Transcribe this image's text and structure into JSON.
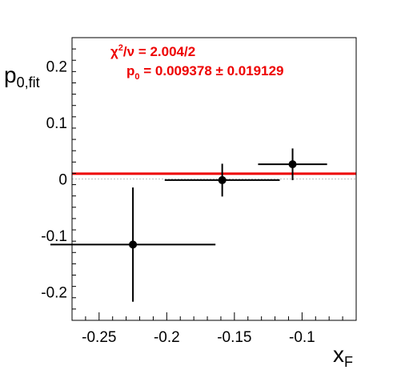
{
  "chart_data": {
    "type": "scatter",
    "xlabel": "x",
    "xlabel_sub": "F",
    "ylabel": "p",
    "ylabel_sub": "0,fit",
    "xlim": [
      -0.27,
      -0.06
    ],
    "ylim": [
      -0.25,
      0.25
    ],
    "x_ticks": [
      -0.25,
      -0.2,
      -0.15,
      -0.1
    ],
    "x_tick_labels": [
      "-0.25",
      "-0.2",
      "-0.15",
      "-0.1"
    ],
    "y_ticks": [
      -0.2,
      -0.1,
      0,
      0.1,
      0.2
    ],
    "y_tick_labels": [
      "-0.2",
      "-0.1",
      "0",
      "0.1",
      "0.2"
    ],
    "reference_line_y": 0,
    "points": [
      {
        "x": -0.225,
        "xerr": 0.061,
        "y": -0.116,
        "yerr": 0.101
      },
      {
        "x": -0.159,
        "xerr": 0.0425,
        "y": -0.002,
        "yerr": 0.029
      },
      {
        "x": -0.107,
        "xerr": 0.0255,
        "y": 0.026,
        "yerr": 0.028
      }
    ],
    "fit": {
      "value": 0.009378,
      "error": 0.019129,
      "chi2_label": "χ",
      "chi2_sup": "2",
      "chi2_rest": "/ν = 2.004/2",
      "p0_label": "p",
      "p0_sub": "0",
      "p0_rest": " = 0.009378 ± 0.019129"
    },
    "colors": {
      "points": "#000000",
      "fit": "#ee0000",
      "reference": "#bbbbbb",
      "axes": "#000000"
    }
  }
}
